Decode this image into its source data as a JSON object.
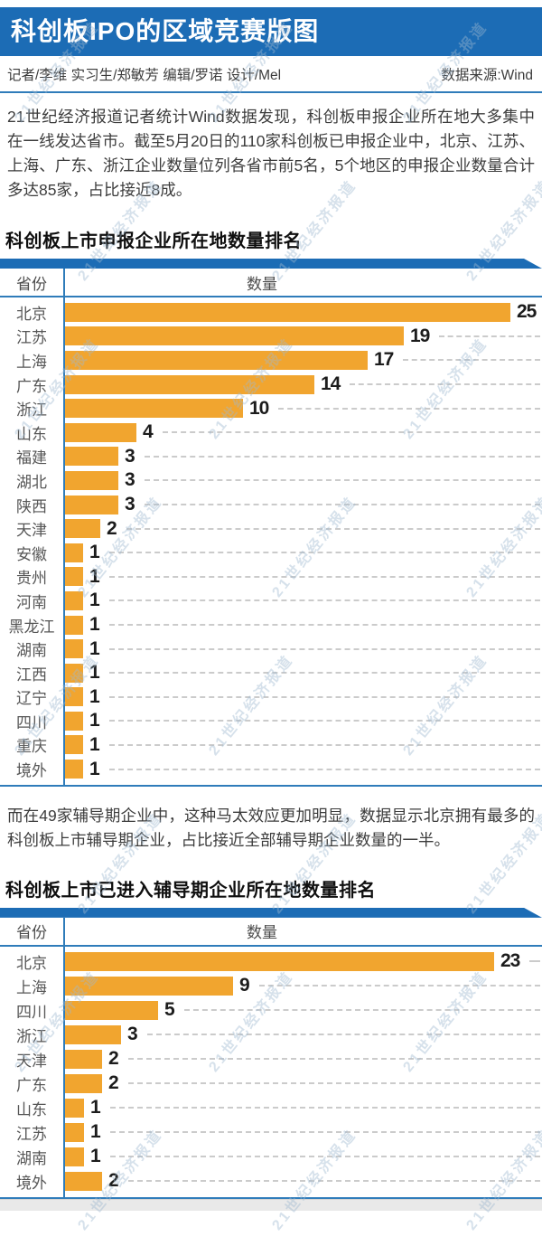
{
  "header": {
    "title": "科创板IPO的区域竞赛版图",
    "byline": "记者/李维  实习生/郑敏芳  编辑/罗诺  设计/Mel",
    "source": "数据来源:Wind"
  },
  "paragraphs": {
    "p1": "21世纪经济报道记者统计Wind数据发现，科创板申报企业所在地大多集中在一线发达省市。截至5月20日的110家科创板已申报企业中，北京、江苏、上海、广东、浙江企业数量位列各省市前5名，5个地区的申报企业数量合计多达85家，占比接近8成。",
    "p2": "而在49家辅导期企业中，这种马太效应更加明显，数据显示北京拥有最多的科创板上市辅导期企业，占比接近全部辅导期企业数量的一半。"
  },
  "watermark": {
    "text": "21世纪经济报道",
    "color": "#9fb9d0"
  },
  "colors": {
    "header_blue": "#1c6cb5",
    "line_blue": "#2f7cba",
    "bar_orange": "#f1a52f",
    "leader_gray": "#cbcbcb"
  },
  "chart_data": [
    {
      "type": "bar",
      "title": "科创板上市申报企业所在地数量排名",
      "col_header_province": "省份",
      "col_header_count": "数量",
      "orientation": "horizontal",
      "grid": "dashed-leader-lines",
      "legend_position": "none",
      "xlim": [
        0,
        25
      ],
      "categories": [
        "北京",
        "江苏",
        "上海",
        "广东",
        "浙江",
        "山东",
        "福建",
        "湖北",
        "陕西",
        "天津",
        "安徽",
        "贵州",
        "河南",
        "黑龙江",
        "湖南",
        "江西",
        "辽宁",
        "四川",
        "重庆",
        "境外"
      ],
      "values": [
        25,
        19,
        17,
        14,
        10,
        4,
        3,
        3,
        3,
        2,
        1,
        1,
        1,
        1,
        1,
        1,
        1,
        1,
        1,
        1
      ]
    },
    {
      "type": "bar",
      "title": "科创板上市已进入辅导期企业所在地数量排名",
      "col_header_province": "省份",
      "col_header_count": "数量",
      "orientation": "horizontal",
      "grid": "dashed-leader-lines",
      "legend_position": "none",
      "xlim": [
        0,
        23
      ],
      "categories": [
        "北京",
        "上海",
        "四川",
        "浙江",
        "天津",
        "广东",
        "山东",
        "江苏",
        "湖南",
        "境外"
      ],
      "values": [
        23,
        9,
        5,
        3,
        2,
        2,
        1,
        1,
        1,
        2
      ]
    }
  ]
}
